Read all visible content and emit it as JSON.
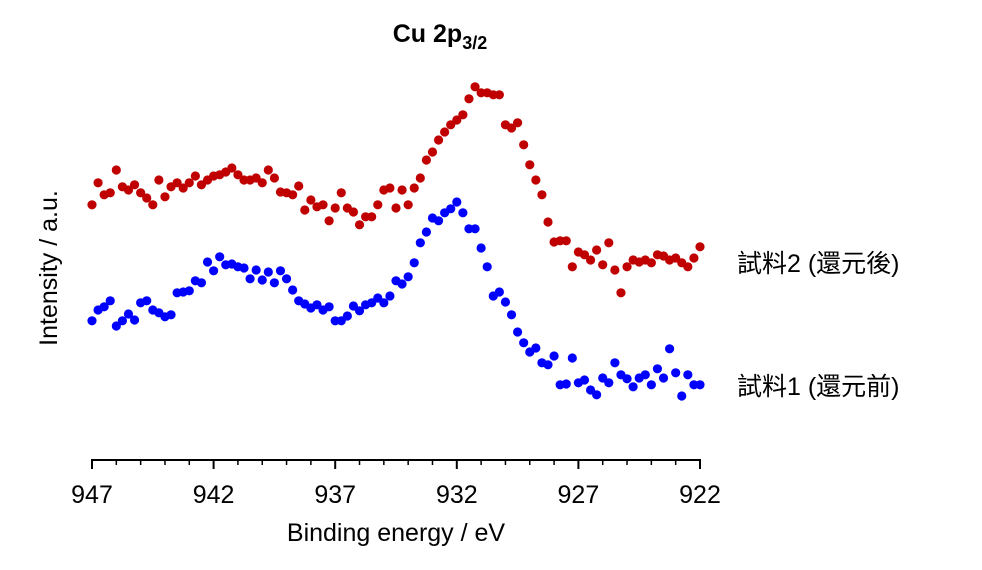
{
  "chart_data": {
    "type": "scatter",
    "title": "Cu 2p",
    "title_subscript": "3/2",
    "x_label": "Binding energy / eV",
    "y_label": "Intensity / a.u.",
    "xlim": [
      947,
      922
    ],
    "xticks": [
      947,
      942,
      937,
      932,
      927,
      922
    ],
    "xminorticks": [
      946,
      945,
      944,
      943,
      941,
      940,
      939,
      938,
      936,
      935,
      934,
      933,
      931,
      930,
      929,
      928,
      926,
      925,
      924,
      923
    ],
    "ylim": [
      0,
      100
    ],
    "x": [
      947,
      946.75,
      946.5,
      946.25,
      946,
      945.75,
      945.5,
      945.25,
      945,
      944.75,
      944.5,
      944.25,
      944,
      943.75,
      943.5,
      943.25,
      943,
      942.75,
      942.5,
      942.25,
      942,
      941.75,
      941.5,
      941.25,
      941,
      940.75,
      940.5,
      940.25,
      940,
      939.75,
      939.5,
      939.25,
      939,
      938.75,
      938.5,
      938.25,
      938,
      937.75,
      937.5,
      937.25,
      937,
      936.75,
      936.5,
      936.25,
      936,
      935.75,
      935.5,
      935.25,
      935,
      934.75,
      934.5,
      934.25,
      934,
      933.75,
      933.5,
      933.25,
      933,
      932.75,
      932.5,
      932.25,
      932,
      931.75,
      931.5,
      931.25,
      931,
      930.75,
      930.5,
      930.25,
      930,
      929.75,
      929.5,
      929.25,
      929,
      928.75,
      928.5,
      928.25,
      928,
      927.75,
      927.5,
      927.25,
      927,
      926.75,
      926.5,
      926.25,
      926,
      925.75,
      925.5,
      925.25,
      925,
      924.75,
      924.5,
      924.25,
      924,
      923.75,
      923.5,
      923.25,
      923,
      922.75,
      922.5,
      922.25,
      922
    ],
    "series": [
      {
        "name": "試料2 (還元後)",
        "color": "#c00000",
        "values": [
          63.8,
          69.3,
          66.3,
          66.8,
          72.5,
          68.3,
          67.5,
          68.8,
          66.8,
          65.5,
          63.8,
          70,
          65.8,
          68.3,
          69.3,
          68,
          69.3,
          71,
          68.8,
          70,
          71,
          71.3,
          72,
          73,
          71.3,
          70,
          70,
          70.5,
          69.3,
          72.5,
          70.5,
          67,
          66.8,
          66.3,
          68.5,
          62.5,
          65,
          63.3,
          63.8,
          59.8,
          63,
          66.8,
          63,
          62,
          58.8,
          60.8,
          60.8,
          63.8,
          67.5,
          68,
          63,
          67.5,
          63.8,
          68,
          70.5,
          75,
          77,
          80,
          82,
          83.8,
          85,
          86.3,
          90.3,
          93.3,
          91.8,
          91.8,
          91.3,
          91.3,
          83.8,
          83,
          84.3,
          78.8,
          73.8,
          70,
          66.3,
          59.5,
          54.5,
          54.8,
          54.8,
          48.3,
          52,
          51.3,
          50,
          52.5,
          48.8,
          54.3,
          47.5,
          41.8,
          48.3,
          50,
          49.5,
          50,
          49.3,
          51.3,
          51,
          50,
          50.5,
          49.3,
          48.3,
          50.5,
          53.3
        ]
      },
      {
        "name": "試料1 (還元前)",
        "color": "#0000ff",
        "values": [
          34.8,
          37.5,
          38.3,
          39.8,
          33.5,
          34.8,
          36.5,
          35,
          39.3,
          39.8,
          37.5,
          36.8,
          35.8,
          36.3,
          41.8,
          42,
          42.3,
          44.8,
          44.3,
          49.5,
          47.3,
          50.8,
          48.8,
          49,
          48.3,
          48,
          45.3,
          47.5,
          45,
          47,
          44.3,
          47.3,
          45.3,
          42.5,
          39.8,
          39,
          38,
          38.8,
          37.5,
          38.3,
          34.8,
          34.8,
          36,
          38.5,
          37.3,
          38.8,
          39.3,
          40.5,
          39.3,
          41,
          44.8,
          44,
          45.8,
          49.3,
          54.3,
          57,
          60.5,
          59.8,
          61.8,
          62.8,
          64.5,
          61.8,
          57.8,
          57.8,
          53,
          48.3,
          41,
          42,
          39.5,
          36.3,
          32,
          29.3,
          27,
          28,
          24.3,
          23.8,
          26,
          18.8,
          19,
          25.5,
          19.3,
          20,
          17.5,
          16.3,
          20.5,
          19.3,
          24.3,
          21.3,
          20.3,
          18.3,
          20.5,
          21.3,
          18.8,
          22.8,
          20.5,
          27.8,
          21.8,
          16,
          21.3,
          18.8,
          18.8
        ]
      }
    ]
  }
}
